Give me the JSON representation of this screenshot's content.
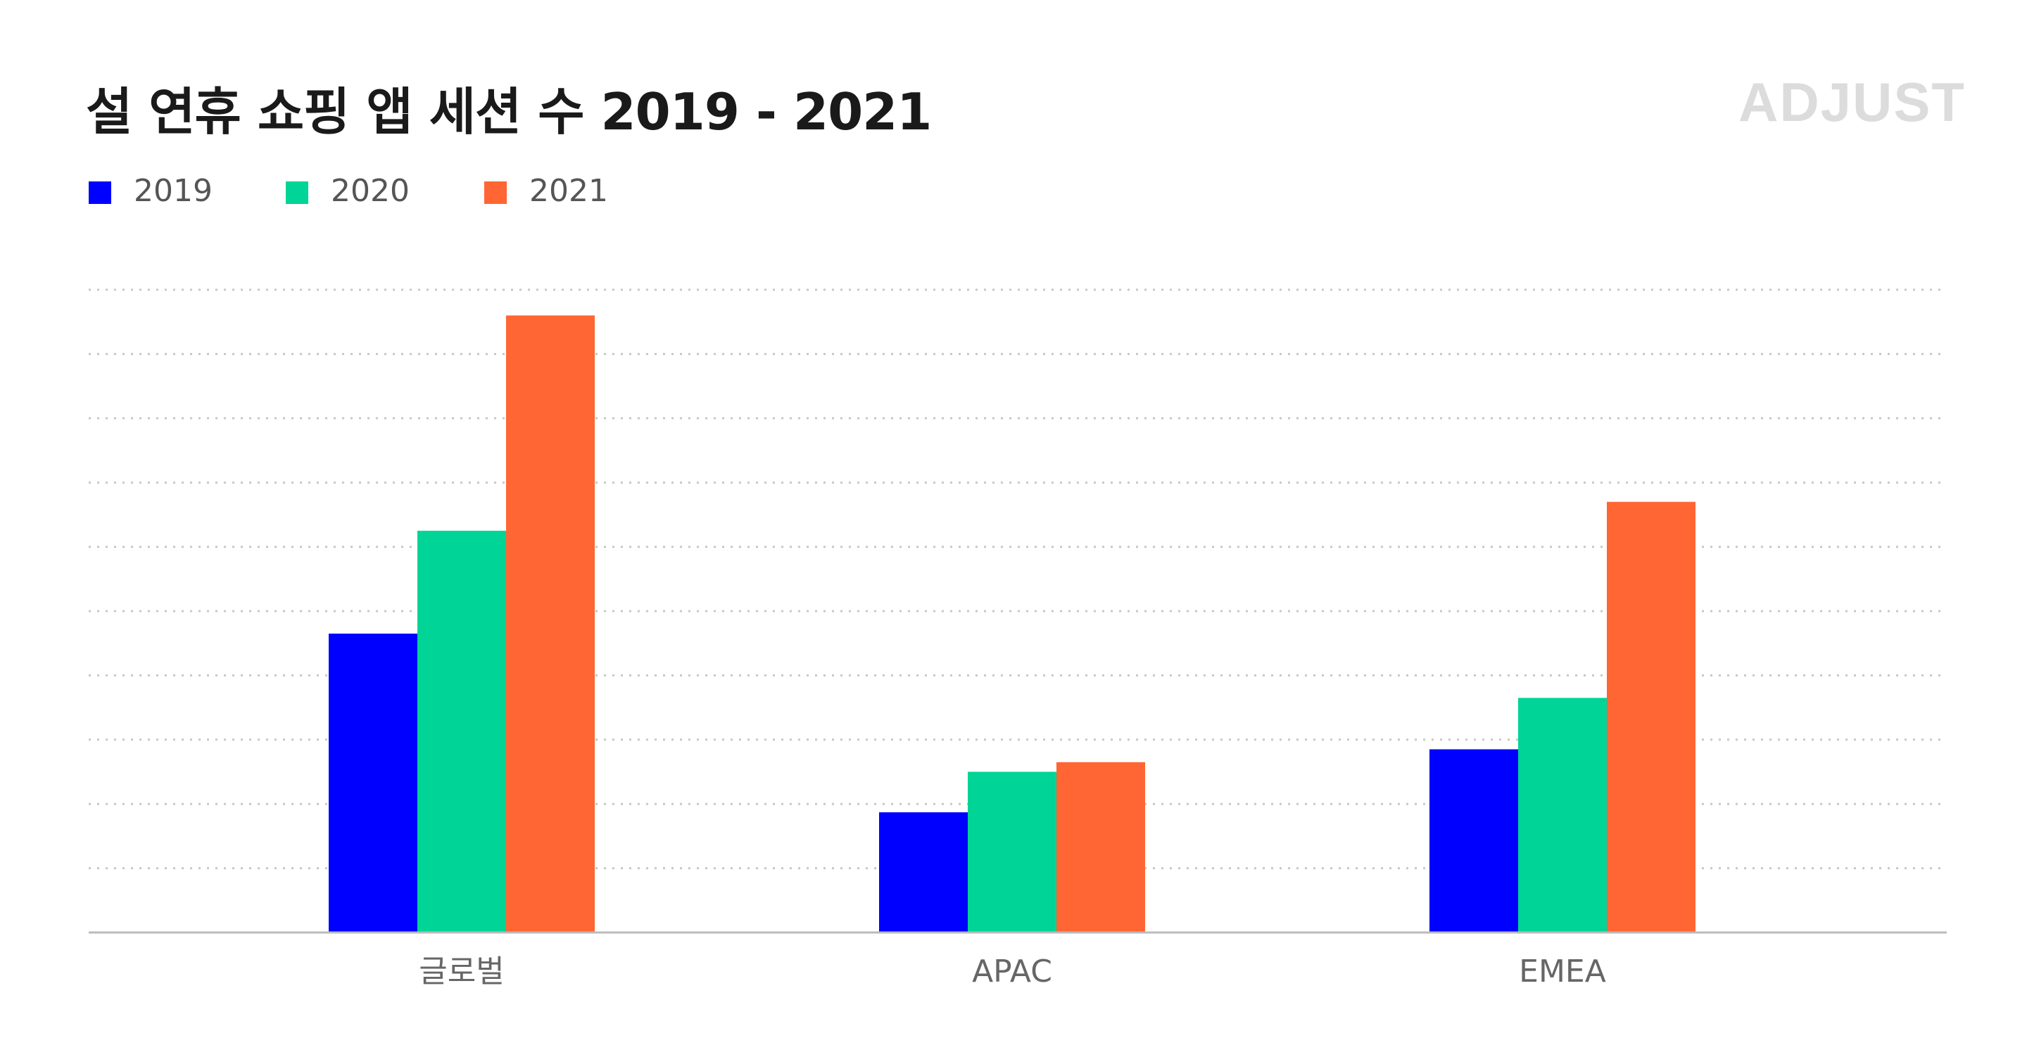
{
  "title": "설 연휴 쇼핑 앱 세션 수 2019 - 2021",
  "logo": {
    "text": "ADJUST",
    "color": "#dcdcdc"
  },
  "chart_data": {
    "type": "bar",
    "title": "설 연휴 쇼핑 앱 세션 수 2019 - 2021",
    "categories": [
      "글로벌",
      "APAC",
      "EMEA"
    ],
    "series": [
      {
        "name": "2019",
        "color": "#0000ff",
        "values": [
          4.65,
          1.87,
          2.85
        ]
      },
      {
        "name": "2020",
        "color": "#00d496",
        "values": [
          6.25,
          2.5,
          3.65
        ]
      },
      {
        "name": "2021",
        "color": "#ff6633",
        "values": [
          9.6,
          2.65,
          6.7
        ]
      }
    ],
    "ylim": [
      0,
      10
    ],
    "grid": true,
    "legend": "top-left",
    "xlabel": "",
    "ylabel": ""
  }
}
